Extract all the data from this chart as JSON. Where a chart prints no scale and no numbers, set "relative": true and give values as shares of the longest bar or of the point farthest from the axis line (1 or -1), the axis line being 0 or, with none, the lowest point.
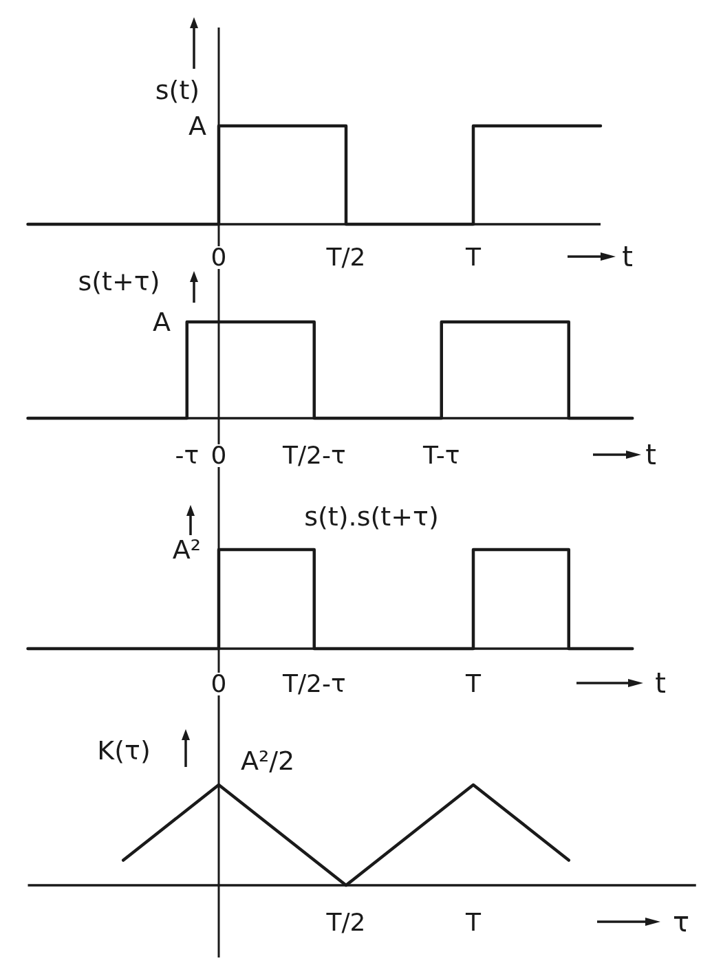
{
  "chart_data": [
    {
      "type": "step",
      "relative": true,
      "ylabel": "s(t)",
      "xlabel": "t",
      "categories": [
        null,
        null,
        null,
        null,
        null,
        null,
        "0",
        null,
        null,
        null,
        "T/2",
        null,
        null,
        null,
        "T",
        null,
        null,
        null,
        null
      ],
      "values": [
        0,
        0,
        0,
        0,
        0,
        0,
        1,
        1,
        1,
        1,
        0,
        0,
        0,
        0,
        1,
        1,
        1,
        1,
        1
      ],
      "color": "#1a1a1a",
      "annotations": [
        "A"
      ]
    },
    {
      "type": "step",
      "relative": true,
      "ylabel": "s(t+τ)",
      "xlabel": "t",
      "categories": [
        null,
        null,
        null,
        null,
        null,
        "-τ",
        "0",
        null,
        null,
        "T/2-τ",
        null,
        null,
        null,
        "T-τ",
        null,
        null,
        null,
        null,
        null,
        null
      ],
      "values": [
        0,
        0,
        0,
        0,
        0,
        1,
        1,
        1,
        1,
        0,
        0,
        0,
        0,
        1,
        1,
        1,
        1,
        0,
        0,
        0
      ],
      "color": "#1a1a1a",
      "annotations": [
        "A"
      ]
    },
    {
      "type": "step",
      "relative": true,
      "ylabel": "s(t).s(t+τ)",
      "xlabel": "t",
      "categories": [
        null,
        null,
        null,
        null,
        null,
        null,
        "0",
        null,
        null,
        "T/2-τ",
        null,
        null,
        null,
        null,
        "T",
        null,
        null,
        null,
        null,
        null
      ],
      "values": [
        0,
        0,
        0,
        0,
        0,
        0,
        1,
        1,
        1,
        0,
        0,
        0,
        0,
        0,
        1,
        1,
        1,
        0,
        0,
        0
      ],
      "color": "#1a1a1a",
      "annotations": [
        "A²"
      ]
    },
    {
      "type": "line",
      "relative": true,
      "ylabel": "K(τ)",
      "xlabel": "τ",
      "categories": [
        null,
        null,
        null,
        null,
        null,
        null,
        null,
        null,
        null,
        null,
        "T/2",
        null,
        null,
        null,
        "T",
        null,
        null,
        null,
        null,
        null,
        null,
        null
      ],
      "values": [
        null,
        null,
        null,
        0.25,
        0.5,
        0.75,
        1,
        0.75,
        0.5,
        0.25,
        0,
        0.25,
        0.5,
        0.75,
        1,
        0.75,
        0.5,
        0.25,
        null,
        null,
        null,
        null
      ],
      "color": "#1a1a1a",
      "annotations": [
        "A²/2"
      ]
    }
  ]
}
